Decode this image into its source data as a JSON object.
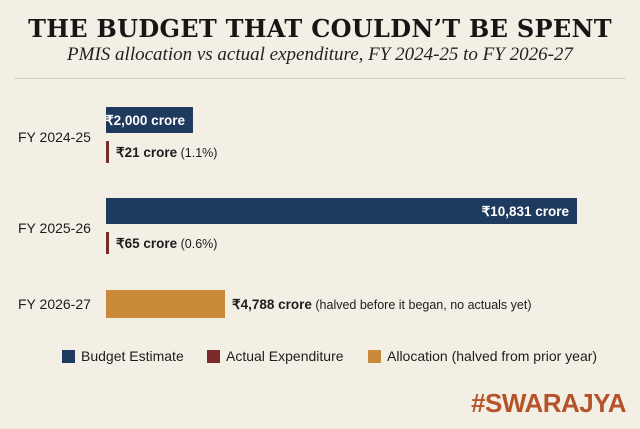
{
  "header": {
    "title": "THE BUDGET THAT COULDN’T BE SPENT",
    "subtitle": "PMIS allocation vs actual expenditure, FY 2024-25 to FY 2026-27"
  },
  "brand": "#SWARAJYA",
  "colors": {
    "budget": "#1f3a5f",
    "actual": "#7b2a2a",
    "allocation": "#c98a3a",
    "background": "#f4efe5"
  },
  "chart_data": {
    "type": "bar",
    "orientation": "horizontal",
    "title": "THE BUDGET THAT COULDN’T BE SPENT",
    "subtitle": "PMIS allocation vs actual expenditure, FY 2024-25 to FY 2026-27",
    "unit": "₹ crore",
    "xlim": [
      0,
      11500
    ],
    "categories": [
      "FY 2024-25",
      "FY 2025-26",
      "FY 2026-27"
    ],
    "series": [
      {
        "name": "Budget Estimate",
        "key": "budget",
        "values": [
          2000,
          10831,
          null
        ]
      },
      {
        "name": "Actual Expenditure",
        "key": "actual",
        "values": [
          21,
          65,
          null
        ]
      },
      {
        "name": "Allocation (halved from prior year)",
        "key": "allocation",
        "values": [
          null,
          null,
          4788
        ]
      }
    ],
    "bar_scale_note": "Budget bars share one length scale; the allocation bar is drawn shorter",
    "labels": [
      {
        "category": 0,
        "series": "budget",
        "bold": "₹2,000 crore",
        "rest": "",
        "placement": "inside"
      },
      {
        "category": 0,
        "series": "actual",
        "bold": "₹21 crore",
        "rest": "(1.1%)",
        "placement": "outside"
      },
      {
        "category": 1,
        "series": "budget",
        "bold": "₹10,831 crore",
        "rest": "",
        "placement": "inside"
      },
      {
        "category": 1,
        "series": "actual",
        "bold": "₹65 crore",
        "rest": "(0.6%)",
        "placement": "outside"
      },
      {
        "category": 2,
        "series": "allocation",
        "bold": "₹4,788 crore",
        "rest": "(halved before it began, no actuals yet)",
        "placement": "outside"
      }
    ],
    "legend": {
      "placement": "bottom",
      "items": [
        {
          "label": "Budget Estimate",
          "key": "budget"
        },
        {
          "label": "Actual Expenditure",
          "key": "actual"
        },
        {
          "label": "Allocation (halved from prior year)",
          "key": "allocation"
        }
      ]
    }
  }
}
